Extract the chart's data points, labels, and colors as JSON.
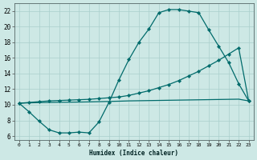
{
  "xlabel": "Humidex (Indice chaleur)",
  "bg_color": "#cde8e5",
  "grid_color": "#aacfcc",
  "line_color": "#006b6b",
  "xlim": [
    -0.5,
    23.5
  ],
  "ylim": [
    5.5,
    23.0
  ],
  "yticks": [
    6,
    8,
    10,
    12,
    14,
    16,
    18,
    20,
    22
  ],
  "xticks": [
    0,
    1,
    2,
    3,
    4,
    5,
    6,
    7,
    8,
    9,
    10,
    11,
    12,
    13,
    14,
    15,
    16,
    17,
    18,
    19,
    20,
    21,
    22,
    23
  ],
  "line1_x": [
    0,
    1,
    2,
    3,
    4,
    5,
    6,
    7,
    8,
    9,
    10,
    11,
    12,
    13,
    14,
    15,
    16,
    17,
    18,
    19,
    20,
    21,
    22,
    23
  ],
  "line1_y": [
    10.2,
    9.1,
    7.9,
    6.8,
    6.4,
    6.4,
    6.5,
    6.4,
    7.8,
    10.3,
    13.2,
    15.8,
    18.0,
    19.7,
    21.8,
    22.2,
    22.2,
    22.0,
    21.8,
    19.6,
    17.5,
    15.4,
    12.7,
    10.5
  ],
  "line2_x": [
    0,
    1,
    2,
    3,
    4,
    5,
    6,
    7,
    8,
    9,
    10,
    11,
    12,
    13,
    14,
    15,
    16,
    17,
    18,
    19,
    20,
    21,
    22,
    23
  ],
  "line2_y": [
    10.2,
    10.3,
    10.4,
    10.5,
    10.55,
    10.6,
    10.65,
    10.7,
    10.8,
    10.9,
    11.0,
    11.2,
    11.5,
    11.8,
    12.2,
    12.6,
    13.1,
    13.7,
    14.3,
    15.0,
    15.7,
    16.5,
    17.3,
    10.5
  ],
  "line3_x": [
    0,
    1,
    2,
    3,
    4,
    5,
    6,
    7,
    8,
    9,
    10,
    11,
    12,
    13,
    14,
    15,
    16,
    17,
    18,
    19,
    20,
    21,
    22,
    23
  ],
  "line3_y": [
    10.2,
    10.25,
    10.28,
    10.3,
    10.32,
    10.33,
    10.35,
    10.37,
    10.4,
    10.43,
    10.46,
    10.5,
    10.52,
    10.54,
    10.56,
    10.58,
    10.6,
    10.62,
    10.64,
    10.66,
    10.68,
    10.7,
    10.72,
    10.5
  ]
}
